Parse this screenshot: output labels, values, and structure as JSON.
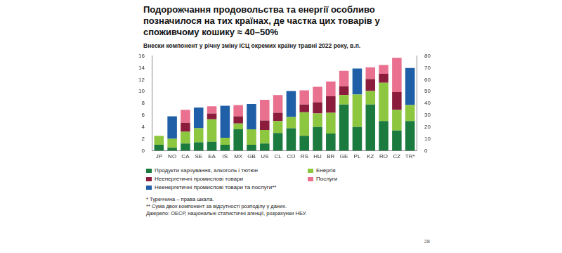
{
  "chart_data": {
    "type": "bar",
    "title": "Подорожчання продовольства та енергії особливо позначилося на тих країнах, де частка цих товарів у споживчому кошику ≈ 40–50%",
    "subtitle": "Внески компонент у річну зміну ІСЦ окремих країну травні 2022 року, в.п.",
    "categories": [
      "JP",
      "NO",
      "CA",
      "SE",
      "EA",
      "IS",
      "MX",
      "GB",
      "US",
      "CL",
      "CO",
      "RS",
      "HU",
      "BR",
      "GE",
      "PL",
      "KZ",
      "RO",
      "CZ",
      "TR*"
    ],
    "stacked": true,
    "grid": false,
    "legend": "bottom",
    "ylim": [
      0,
      16
    ],
    "yticks": [
      0,
      2,
      4,
      6,
      8,
      10,
      12,
      14,
      16
    ],
    "y2lim": [
      0,
      80
    ],
    "y2ticks": [
      0,
      10,
      20,
      30,
      40,
      50,
      60,
      70,
      80
    ],
    "series": [
      {
        "name": "Продукти харчування, алкоголь і тютюн",
        "color": "#1b7a3e",
        "axis": "y",
        "values": [
          1.0,
          0.5,
          1.2,
          1.4,
          1.5,
          1.0,
          3.6,
          1.0,
          1.2,
          3.0,
          3.8,
          2.5,
          4.0,
          2.9,
          7.8,
          4.0,
          7.8,
          5.0,
          3.4,
          null
        ]
      },
      {
        "name": "Енергія",
        "color": "#8dc63f",
        "axis": "y",
        "values": [
          1.5,
          1.5,
          2.0,
          2.4,
          3.8,
          1.2,
          1.0,
          2.6,
          2.3,
          2.0,
          1.9,
          4.0,
          2.3,
          3.5,
          1.6,
          5.5,
          2.3,
          6.5,
          3.5,
          null
        ]
      },
      {
        "name": "Неенергетичні промислові товари",
        "color": "#8b1c3c",
        "axis": "y",
        "values": [
          null,
          null,
          1.5,
          null,
          1.0,
          null,
          1.2,
          null,
          1.6,
          1.4,
          null,
          1.3,
          1.9,
          2.8,
          1.5,
          null,
          2.0,
          1.5,
          3.0,
          null
        ]
      },
      {
        "name": "Послуги",
        "color": "#e9718f",
        "axis": "y",
        "values": [
          null,
          null,
          2.2,
          null,
          1.2,
          null,
          1.9,
          null,
          3.5,
          3.0,
          null,
          2.4,
          2.6,
          2.5,
          2.6,
          null,
          2.0,
          1.5,
          5.8,
          null
        ]
      },
      {
        "name": "Неенергетичні промислові товари та послуги**",
        "color": "#1f5fa8",
        "axis": "y",
        "values": [
          null,
          3.8,
          null,
          3.5,
          null,
          5.4,
          null,
          4.3,
          null,
          null,
          4.4,
          null,
          null,
          null,
          null,
          4.4,
          null,
          null,
          null,
          null
        ]
      },
      {
        "name": "Продукти харчування, алкоголь і тютюн",
        "color": "#1b7a3e",
        "axis": "y2",
        "values": [
          null,
          null,
          null,
          null,
          null,
          null,
          null,
          null,
          null,
          null,
          null,
          null,
          null,
          null,
          null,
          null,
          null,
          null,
          null,
          25
        ]
      },
      {
        "name": "Енергія",
        "color": "#8dc63f",
        "axis": "y2",
        "values": [
          null,
          null,
          null,
          null,
          null,
          null,
          null,
          null,
          null,
          null,
          null,
          null,
          null,
          null,
          null,
          null,
          null,
          null,
          null,
          13.5
        ]
      },
      {
        "name": "Неенергетичні промислові товари та послуги**",
        "color": "#1f5fa8",
        "axis": "y2",
        "values": [
          null,
          null,
          null,
          null,
          null,
          null,
          null,
          null,
          null,
          null,
          null,
          null,
          null,
          null,
          null,
          null,
          null,
          null,
          null,
          31.5
        ]
      }
    ],
    "notes": [
      "* Туреччина – права шкала.",
      "** Сума двох компонент за відсутності розподілу у даних.",
      "Джерело: ОЕСР, національні статистичні агенції, розрахунки НБУ."
    ],
    "page_number": "28"
  }
}
